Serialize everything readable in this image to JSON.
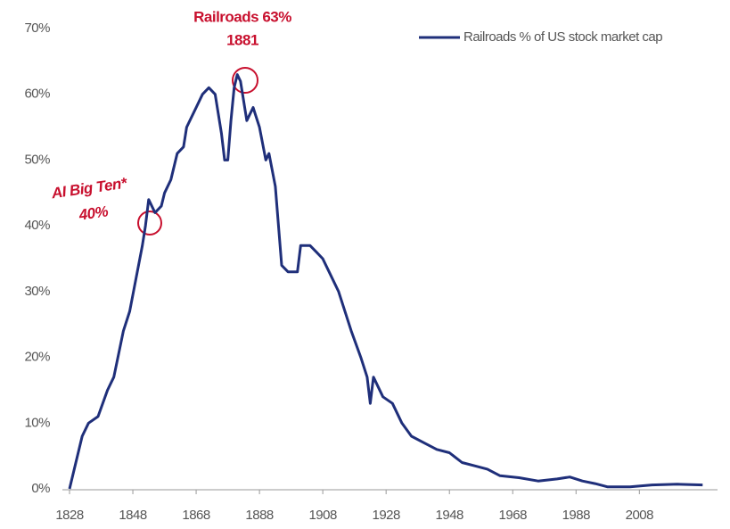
{
  "chart_data": {
    "type": "line",
    "legend": "upper right",
    "annotations": [
      "Railroads 63%",
      "1881",
      "AI Big Ten*",
      "40%"
    ],
    "x": [
      1828,
      1830,
      1832,
      1834,
      1837,
      1840,
      1842,
      1845,
      1847,
      1849,
      1851,
      1852,
      1853,
      1855,
      1857,
      1858,
      1860,
      1862,
      1864,
      1865,
      1868,
      1870,
      1872,
      1874,
      1876,
      1877,
      1878,
      1879,
      1880,
      1881,
      1882,
      1884,
      1886,
      1888,
      1890,
      1891,
      1893,
      1895,
      1897,
      1900,
      1901,
      1904,
      1906,
      1908,
      1910,
      1913,
      1917,
      1920,
      1922,
      1923,
      1924,
      1927,
      1930,
      1933,
      1936,
      1940,
      1944,
      1948,
      1952,
      1956,
      1960,
      1964,
      1970,
      1976,
      1982,
      1986,
      1990,
      1994,
      1998,
      2005,
      2012,
      2020,
      2028
    ],
    "series": [
      {
        "name": "Railroads % of US stock market cap",
        "color": "#1f2f7a",
        "values": [
          0,
          4,
          8,
          10,
          11,
          15,
          17,
          24,
          27,
          32,
          37,
          40,
          44,
          42,
          43,
          45,
          47,
          51,
          52,
          55,
          58,
          60,
          61,
          60,
          54,
          50,
          50,
          56,
          61,
          63,
          62,
          56,
          58,
          55,
          50,
          51,
          46,
          34,
          33,
          33,
          37,
          37,
          36,
          35,
          33,
          30,
          24,
          20,
          17,
          13,
          17,
          14,
          13,
          10,
          8,
          7,
          6,
          5.5,
          4,
          3.5,
          3,
          2,
          1.7,
          1.2,
          1.5,
          1.8,
          1.2,
          0.8,
          0.3,
          0.3,
          0.6,
          0.7,
          0.6
        ]
      }
    ],
    "xlim": [
      1828,
      2031
    ],
    "xticks": [
      1828,
      1848,
      1868,
      1888,
      1908,
      1928,
      1948,
      1968,
      1988,
      2008
    ],
    "ylim": [
      0,
      70
    ],
    "yticks": [
      {
        "value": 0,
        "label": "0%"
      },
      {
        "value": 10,
        "label": "10%"
      },
      {
        "value": 20,
        "label": "20%"
      },
      {
        "value": 30,
        "label": "30%"
      },
      {
        "value": 40,
        "label": "40%"
      },
      {
        "value": 50,
        "label": "50%"
      },
      {
        "value": 60,
        "label": "60%"
      },
      {
        "value": 70,
        "label": "70%"
      }
    ]
  }
}
